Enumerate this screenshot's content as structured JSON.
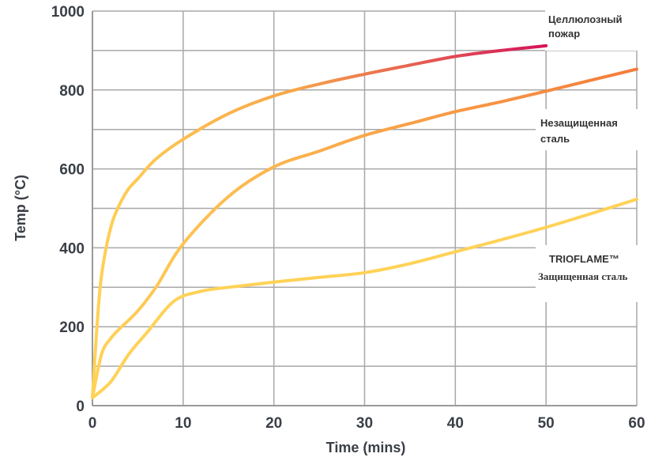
{
  "chart_data": {
    "type": "line",
    "xlabel": "Time (mins)",
    "ylabel": "Temp (°C)",
    "xlim": [
      0,
      60
    ],
    "ylim": [
      0,
      1000
    ],
    "x_ticks": [
      "0",
      "10",
      "20",
      "30",
      "40",
      "50",
      "60"
    ],
    "y_ticks": [
      "0",
      "200",
      "400",
      "600",
      "800",
      "1000"
    ],
    "grid": true,
    "legend": "right, inline labels",
    "series": [
      {
        "name": "Целлюлозный пожар",
        "label_lines": [
          "Целлюлозный",
          "пожар"
        ],
        "color_start": "#ffd257",
        "color_end": "#d4145a",
        "x": [
          0,
          0.5,
          1,
          2,
          3,
          4,
          5,
          7,
          10,
          15,
          20,
          25,
          30,
          35,
          40,
          45,
          50
        ],
        "y": [
          20,
          200,
          330,
          450,
          510,
          550,
          575,
          625,
          675,
          740,
          785,
          815,
          840,
          863,
          885,
          900,
          912
        ]
      },
      {
        "name": "Незащищенная сталь",
        "label_lines": [
          "Незащищенная",
          "сталь"
        ],
        "color_start": "#ffd257",
        "color_end": "#f47c3c",
        "x": [
          0,
          1,
          2,
          3,
          5,
          7,
          10,
          15,
          20,
          25,
          30,
          35,
          40,
          45,
          50,
          55,
          60
        ],
        "y": [
          20,
          130,
          170,
          195,
          240,
          300,
          410,
          530,
          605,
          645,
          685,
          715,
          745,
          770,
          797,
          825,
          853
        ]
      },
      {
        "name": "TRIOFLAME™ Защищенная сталь",
        "label_lines": [
          "TRIOFLAME™",
          "Защищенная сталь"
        ],
        "color_start": "#ffd257",
        "color_end": "#ffd257",
        "x": [
          0,
          2,
          4,
          6,
          9,
          12,
          15,
          20,
          25,
          30,
          35,
          40,
          45,
          50,
          55,
          60
        ],
        "y": [
          20,
          60,
          130,
          185,
          265,
          290,
          300,
          313,
          325,
          337,
          360,
          390,
          420,
          452,
          487,
          523
        ]
      }
    ]
  }
}
